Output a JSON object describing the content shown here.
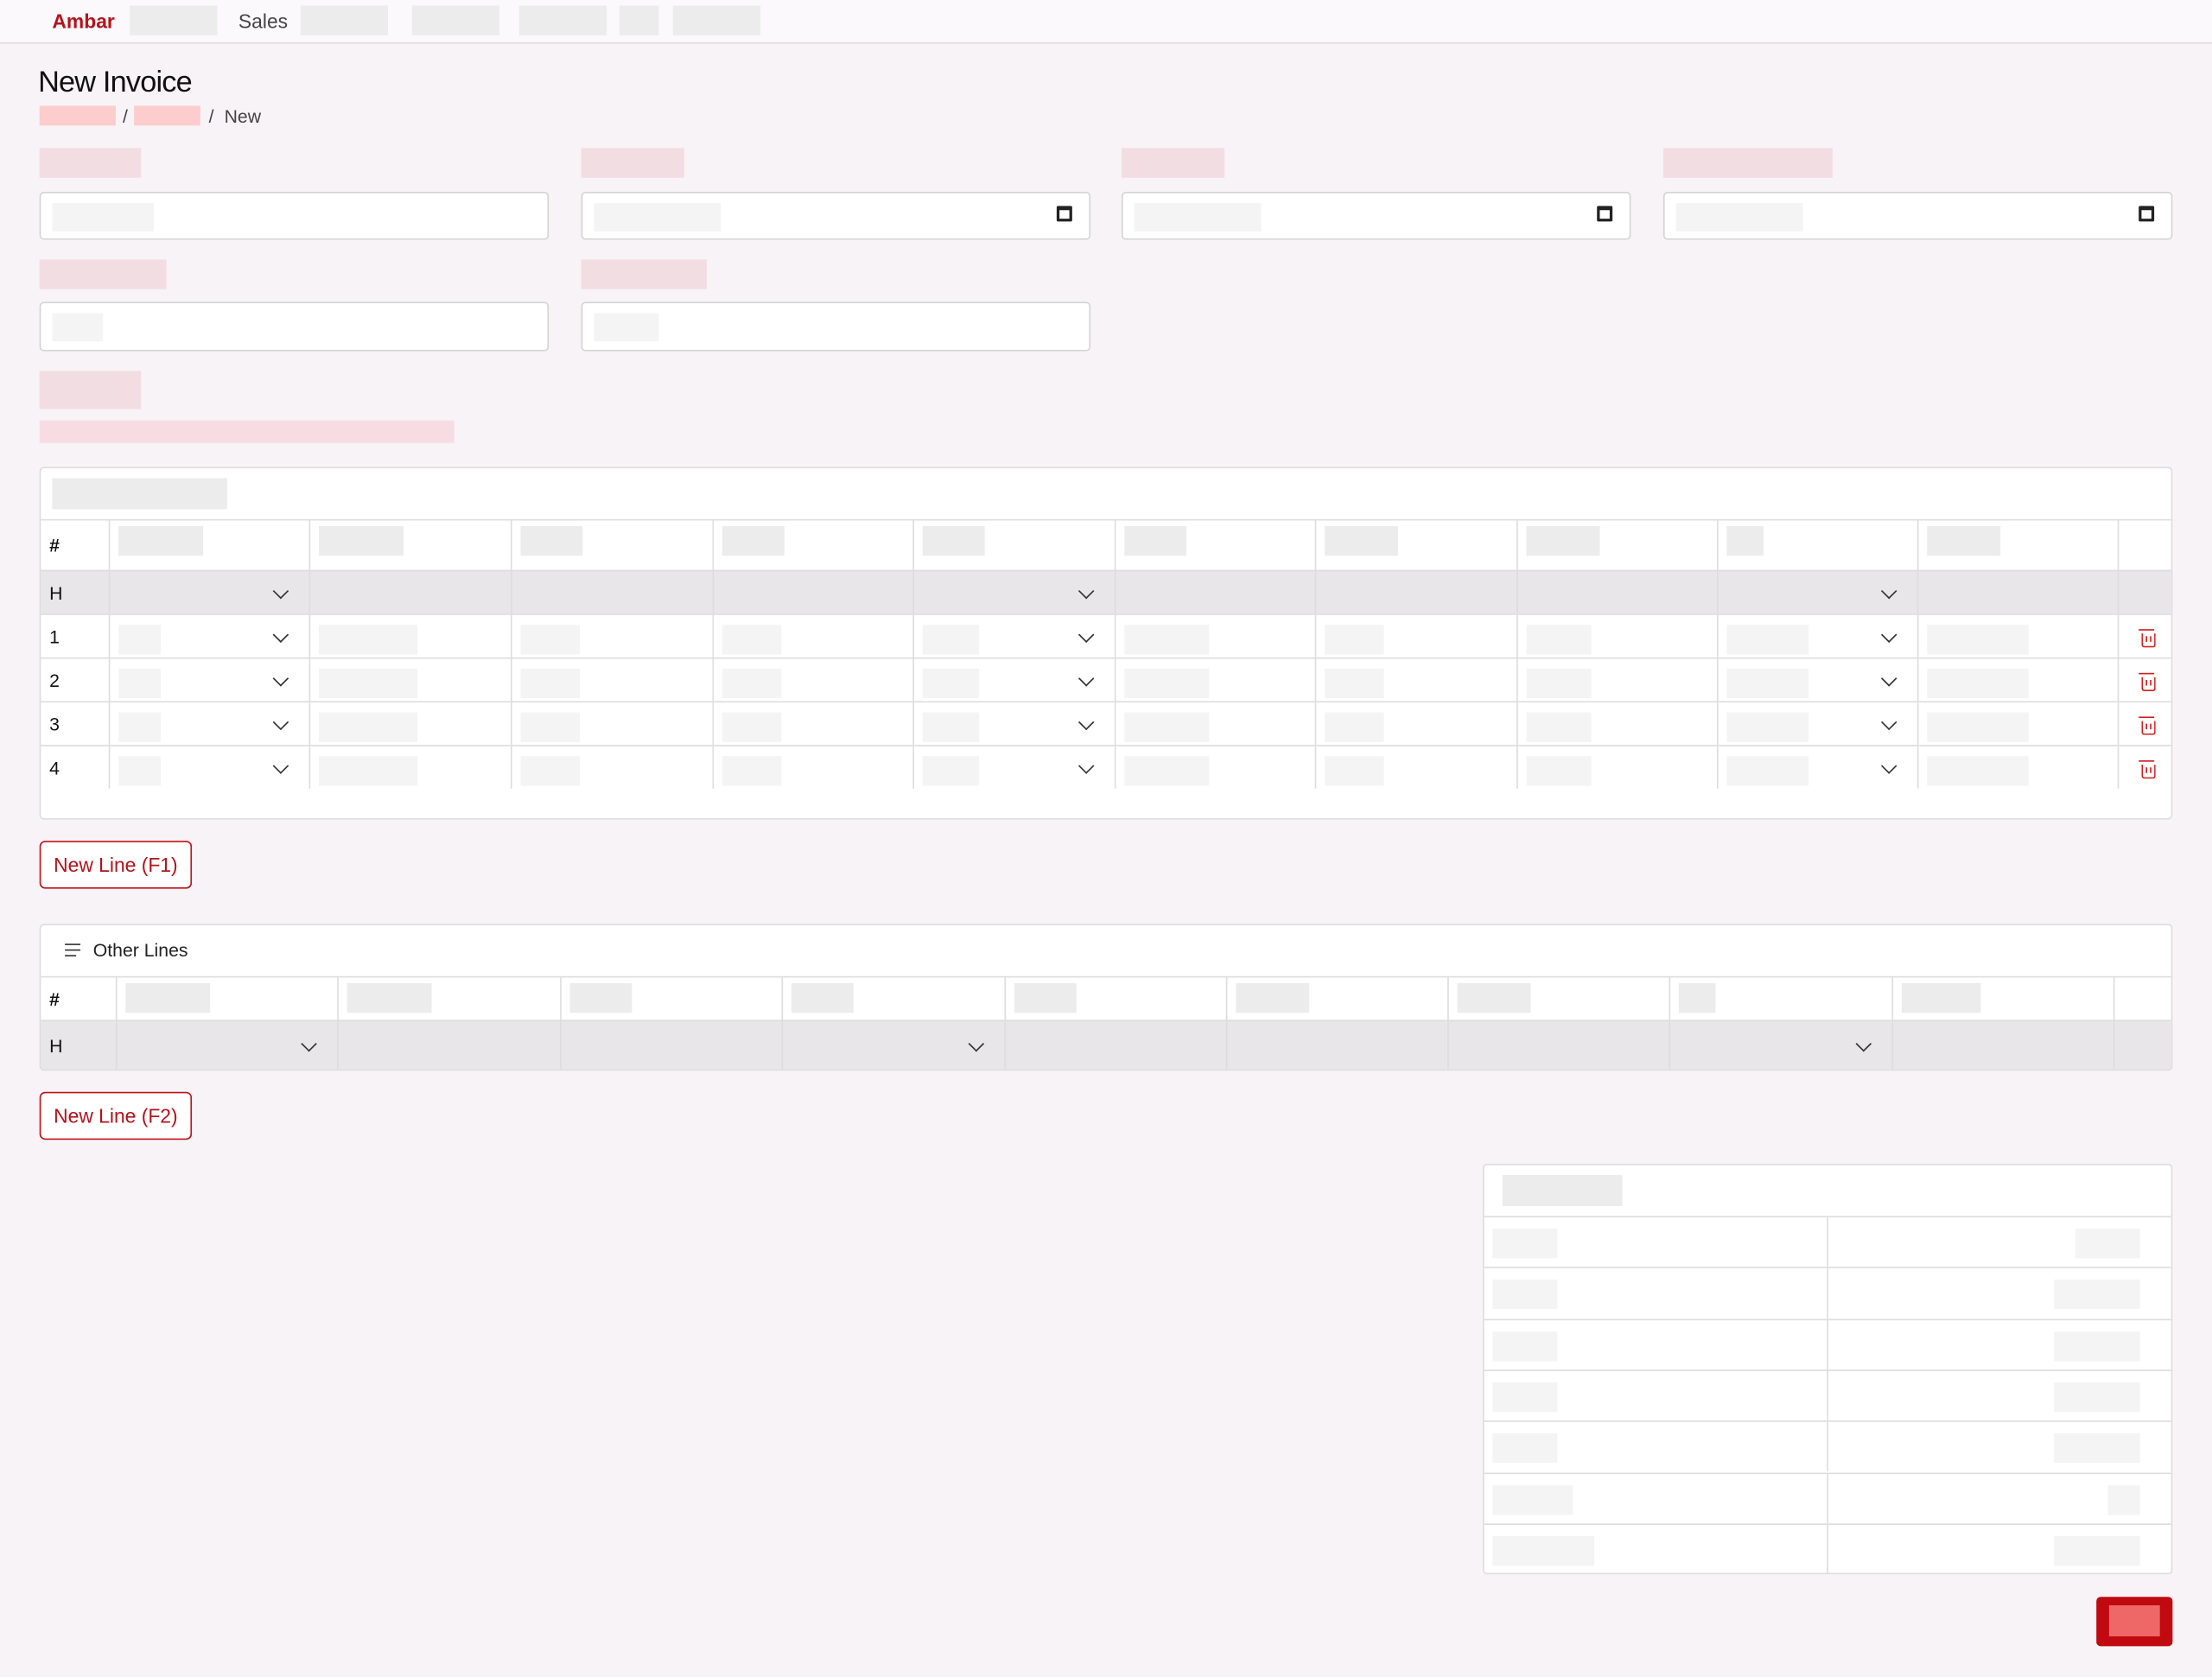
{
  "nav": {
    "brand": "Ambar",
    "items": [
      "",
      "Sales",
      "",
      "",
      "",
      "",
      ""
    ]
  },
  "page": {
    "title": "New Invoice",
    "breadcrumb": [
      "",
      "",
      "New"
    ]
  },
  "lines_table": {
    "header_label": "#",
    "rows": [
      "H",
      "1",
      "2",
      "3",
      "4"
    ],
    "new_line_button": "New Line (F1)"
  },
  "other_lines": {
    "title": "Other Lines",
    "header_label": "#",
    "rows": [
      "H"
    ],
    "new_line_button": "New Line (F2)"
  },
  "icons": {
    "date": "calendar-icon",
    "dropdown": "chevron-down-icon",
    "delete": "trash-icon",
    "section": "menu-icon"
  },
  "colors": {
    "brand": "#b5121b",
    "background": "#f8f3f6",
    "submit": "#c00a10",
    "delete": "#d31c1c"
  }
}
